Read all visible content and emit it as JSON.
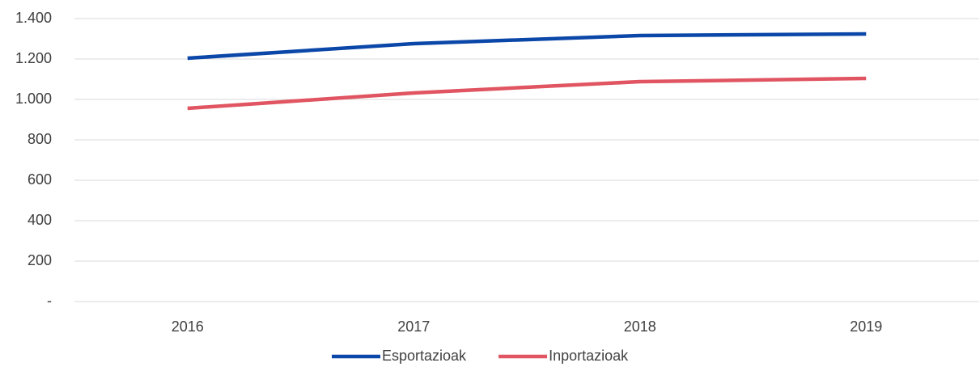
{
  "chart_data": {
    "type": "line",
    "categories": [
      "2016",
      "2017",
      "2018",
      "2019"
    ],
    "series": [
      {
        "name": "Esportazioak",
        "color": "#0b47a8",
        "values": [
          1204,
          1276,
          1316,
          1324
        ]
      },
      {
        "name": "Inportazioak",
        "color": "#e05561",
        "values": [
          956,
          1032,
          1088,
          1104
        ]
      }
    ],
    "ylim": [
      0,
      1400
    ],
    "yticks": [
      {
        "value": 0,
        "label": "-"
      },
      200,
      400,
      600,
      800,
      {
        "value": 1000,
        "label": "1.000"
      },
      {
        "value": 1200,
        "label": "1.200"
      },
      {
        "value": 1400,
        "label": "1.400"
      }
    ],
    "grid": true,
    "legend": "bottom"
  }
}
